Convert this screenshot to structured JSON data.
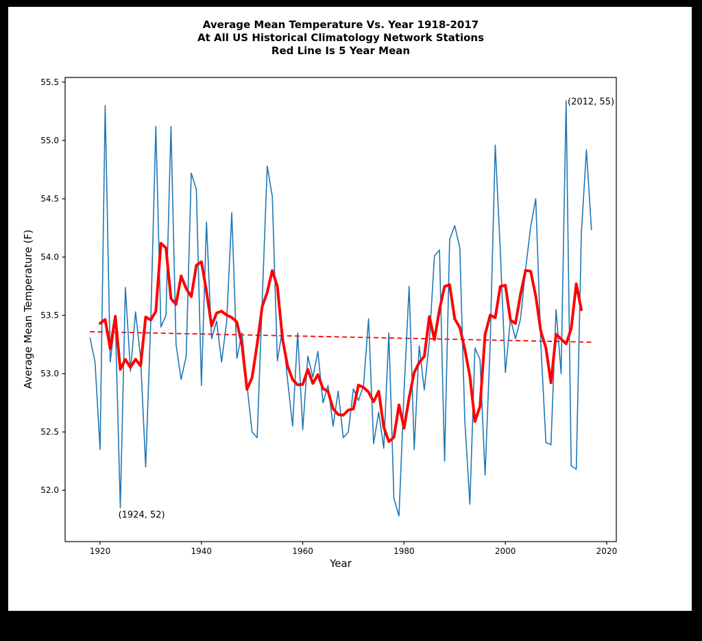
{
  "page": {
    "background_color": "#000000",
    "figure_background_color": "#ffffff"
  },
  "chart_data": {
    "type": "line",
    "title_lines": [
      "Average Mean Temperature Vs. Year 1918-2017",
      "At All US Historical Climatology Network Stations",
      "Red Line Is 5 Year Mean"
    ],
    "xlabel": "Year",
    "ylabel": "Average Mean Temperature (F)",
    "xlim": [
      1913.1,
      2021.9
    ],
    "ylim": [
      51.56,
      55.54
    ],
    "x_ticks": [
      1920,
      1940,
      1960,
      1980,
      2000,
      2020
    ],
    "y_ticks": [
      52.0,
      52.5,
      53.0,
      53.5,
      54.0,
      54.5,
      55.0,
      55.5
    ],
    "grid": false,
    "legend": "none",
    "axis_color": "#000000",
    "series": [
      {
        "name": "annual-mean-temperature",
        "color": "#1f77b4",
        "line_width": 1.6,
        "years": [
          1918,
          1919,
          1920,
          1921,
          1922,
          1923,
          1924,
          1925,
          1926,
          1927,
          1928,
          1929,
          1930,
          1931,
          1932,
          1933,
          1934,
          1935,
          1936,
          1937,
          1938,
          1939,
          1940,
          1941,
          1942,
          1943,
          1944,
          1945,
          1946,
          1947,
          1948,
          1949,
          1950,
          1951,
          1952,
          1953,
          1954,
          1955,
          1956,
          1957,
          1958,
          1959,
          1960,
          1961,
          1962,
          1963,
          1964,
          1965,
          1966,
          1967,
          1968,
          1969,
          1970,
          1971,
          1972,
          1973,
          1974,
          1975,
          1976,
          1977,
          1978,
          1979,
          1980,
          1981,
          1982,
          1983,
          1984,
          1985,
          1986,
          1987,
          1988,
          1989,
          1990,
          1991,
          1992,
          1993,
          1994,
          1995,
          1996,
          1997,
          1998,
          1999,
          2000,
          2001,
          2002,
          2003,
          2004,
          2005,
          2006,
          2007,
          2008,
          2009,
          2010,
          2011,
          2012,
          2013,
          2014,
          2015,
          2016,
          2017
        ],
        "values": [
          53.31,
          53.1,
          52.35,
          55.3,
          53.1,
          53.47,
          51.85,
          53.74,
          53.02,
          53.53,
          53.13,
          52.2,
          53.45,
          55.12,
          53.4,
          53.5,
          55.12,
          53.25,
          52.95,
          53.15,
          54.72,
          54.58,
          52.9,
          54.3,
          53.3,
          53.45,
          53.1,
          53.45,
          54.38,
          53.13,
          53.35,
          52.9,
          52.5,
          52.45,
          53.63,
          54.78,
          54.52,
          53.11,
          53.38,
          52.95,
          52.55,
          53.35,
          52.52,
          53.15,
          52.97,
          53.19,
          52.75,
          52.9,
          52.55,
          52.85,
          52.45,
          52.5,
          52.87,
          52.77,
          52.9,
          53.47,
          52.4,
          52.67,
          52.36,
          53.35,
          51.93,
          51.78,
          52.85,
          53.75,
          52.35,
          53.24,
          52.86,
          53.28,
          54.01,
          54.06,
          52.25,
          54.15,
          54.27,
          54.08,
          52.6,
          51.88,
          53.22,
          53.12,
          52.13,
          53.25,
          54.96,
          54.05,
          53.01,
          53.47,
          53.3,
          53.47,
          53.9,
          54.26,
          54.5,
          53.26,
          52.41,
          52.39,
          53.55,
          53.0,
          55.34,
          52.21,
          52.18,
          54.2,
          54.92,
          54.23
        ]
      },
      {
        "name": "five-year-mean",
        "color": "#ff0000",
        "line_width": 4,
        "derived": "5-year centered rolling mean of annual-mean-temperature (plotted 1920-2015)"
      },
      {
        "name": "trend-line",
        "color": "#ff0000",
        "style": "dashed",
        "line_width": 1.8,
        "x": [
          1918,
          2017
        ],
        "values": [
          53.36,
          53.27
        ]
      }
    ],
    "annotations": [
      {
        "text": "(2012, 55)",
        "x": 2012.3,
        "y": 55.33
      },
      {
        "text": "(1924, 52)",
        "x": 1923.6,
        "y": 51.79
      }
    ]
  }
}
